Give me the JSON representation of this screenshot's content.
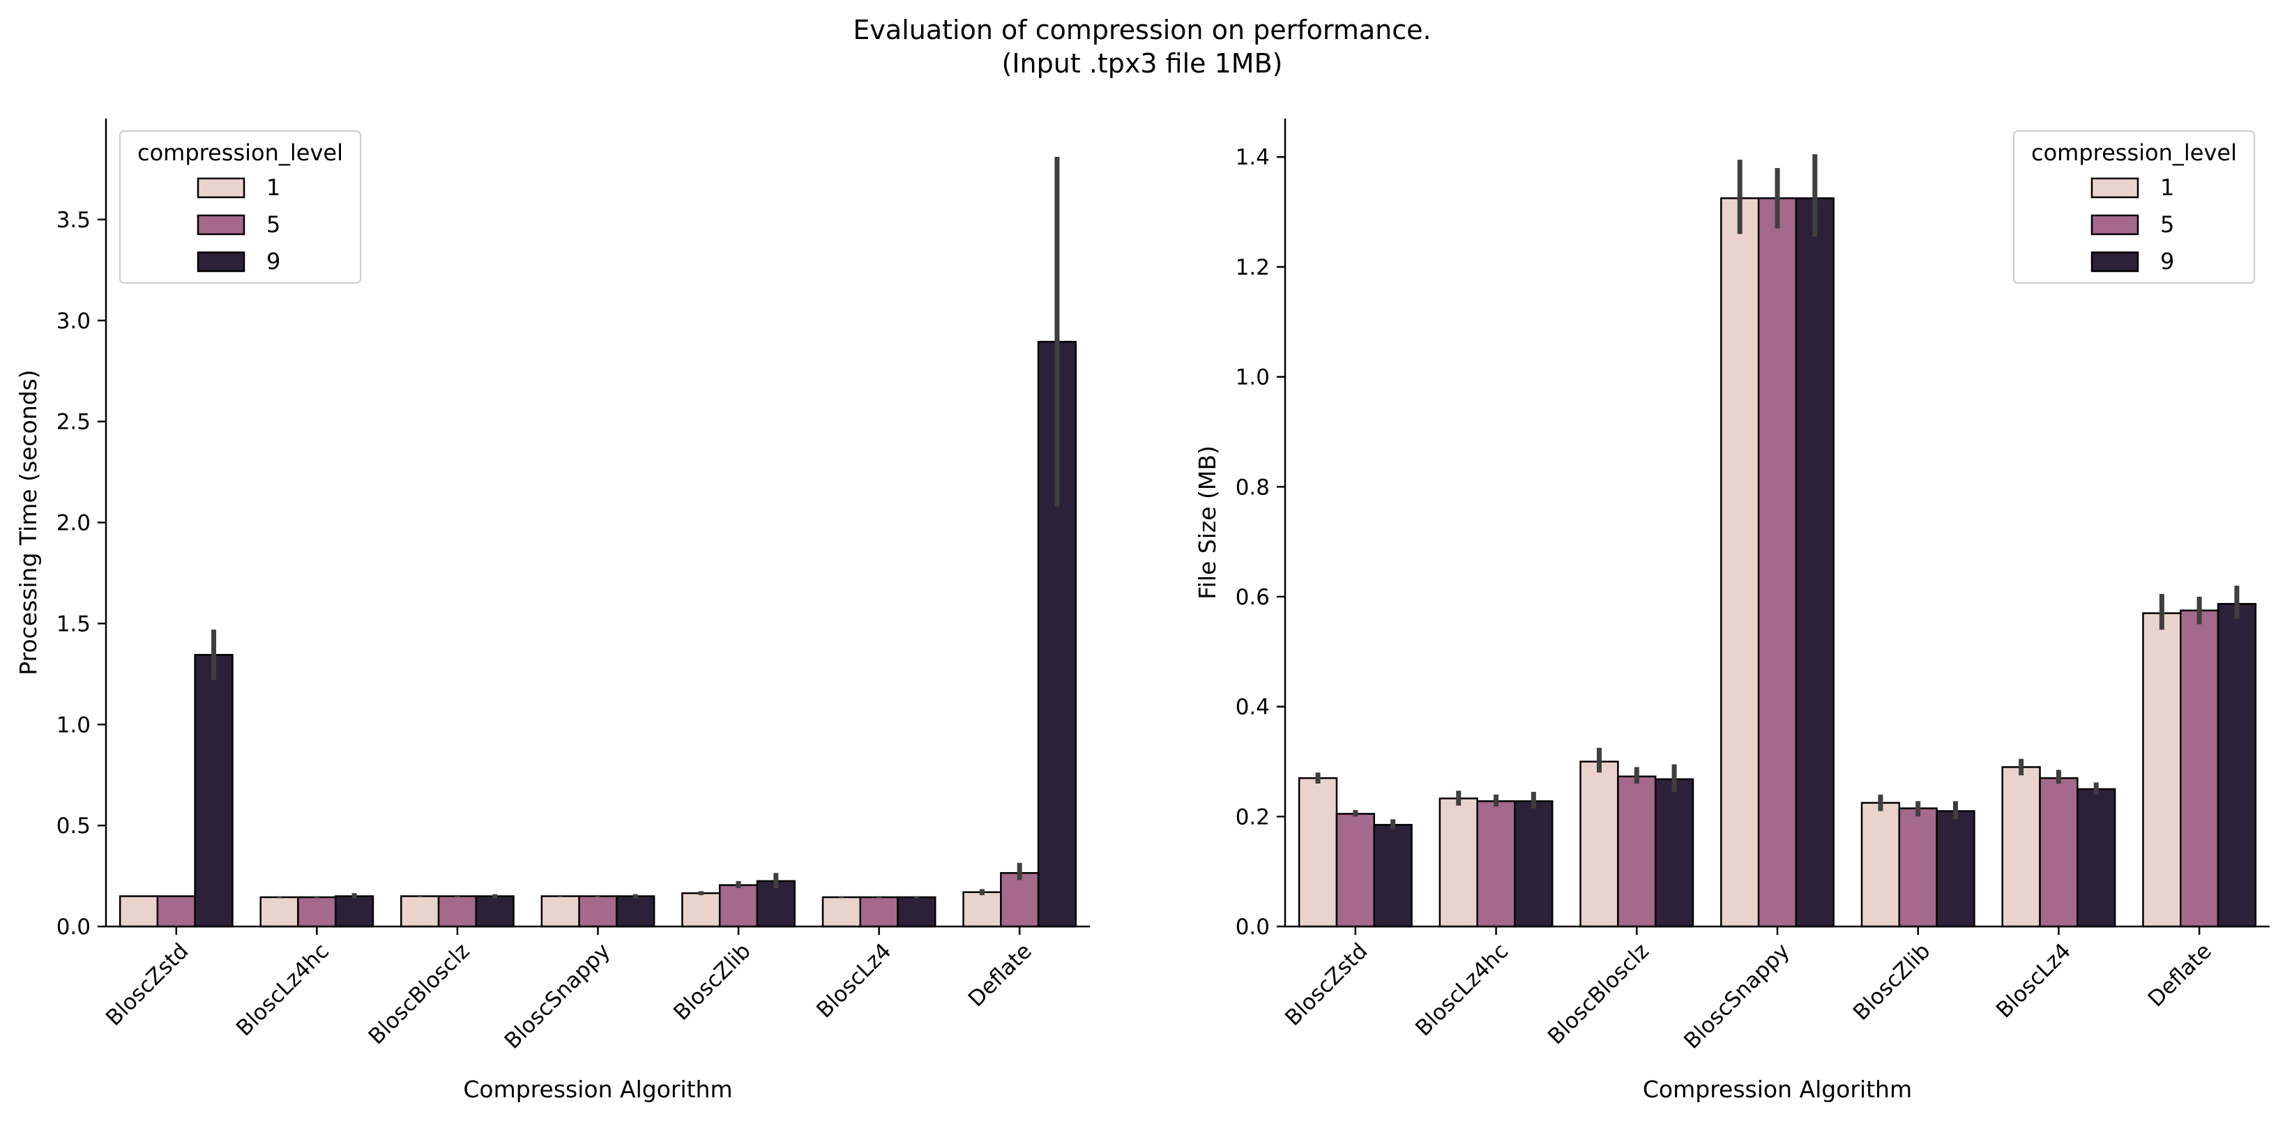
{
  "figure": {
    "title_line1": "Evaluation of compression on performance.",
    "title_line2": "(Input .tpx3 file 1MB)"
  },
  "colors": {
    "level_1": "#ebd3cd",
    "level_5": "#a5698c",
    "level_9": "#2d2139",
    "edge": "#000000",
    "errorbar": "#3f3f3f"
  },
  "chart_data": [
    {
      "type": "bar",
      "categories": [
        "BloscZstd",
        "BloscLz4hc",
        "BloscBlosclz",
        "BloscSnappy",
        "BloscZlib",
        "BloscLz4",
        "Deflate"
      ],
      "xlabel": "Compression Algorithm",
      "ylabel": "Processing Time (seconds)",
      "ylim": [
        0,
        4.0
      ],
      "yticks": [
        0.0,
        0.5,
        1.0,
        1.5,
        2.0,
        2.5,
        3.0,
        3.5
      ],
      "ytick_labels": [
        "0.0",
        "0.5",
        "1.0",
        "1.5",
        "2.0",
        "2.5",
        "3.0",
        "3.5"
      ],
      "legend": {
        "title": "compression_level",
        "placement": "top-left"
      },
      "series": [
        {
          "name": "1",
          "values": [
            0.15,
            0.145,
            0.15,
            0.15,
            0.165,
            0.145,
            0.17
          ],
          "err_low": [
            0.15,
            0.14,
            0.145,
            0.145,
            0.155,
            0.14,
            0.155
          ],
          "err_high": [
            0.15,
            0.15,
            0.155,
            0.155,
            0.175,
            0.15,
            0.185
          ]
        },
        {
          "name": "5",
          "values": [
            0.15,
            0.145,
            0.15,
            0.15,
            0.205,
            0.145,
            0.265
          ],
          "err_low": [
            0.15,
            0.14,
            0.145,
            0.145,
            0.19,
            0.14,
            0.23
          ],
          "err_high": [
            0.15,
            0.15,
            0.155,
            0.155,
            0.225,
            0.15,
            0.315
          ]
        },
        {
          "name": "9",
          "values": [
            1.345,
            0.15,
            0.15,
            0.15,
            0.225,
            0.145,
            2.895
          ],
          "err_low": [
            1.22,
            0.14,
            0.14,
            0.14,
            0.19,
            0.14,
            2.08
          ],
          "err_high": [
            1.47,
            0.165,
            0.16,
            0.16,
            0.265,
            0.15,
            3.81
          ]
        }
      ]
    },
    {
      "type": "bar",
      "categories": [
        "BloscZstd",
        "BloscLz4hc",
        "BloscBlosclz",
        "BloscSnappy",
        "BloscZlib",
        "BloscLz4",
        "Deflate"
      ],
      "xlabel": "Compression Algorithm",
      "ylabel": "File Size (MB)",
      "ylim": [
        0,
        1.47
      ],
      "yticks": [
        0.0,
        0.2,
        0.4,
        0.6,
        0.8,
        1.0,
        1.2,
        1.4
      ],
      "ytick_labels": [
        "0.0",
        "0.2",
        "0.4",
        "0.6",
        "0.8",
        "1.0",
        "1.2",
        "1.4"
      ],
      "legend": {
        "title": "compression_level",
        "placement": "top-right"
      },
      "series": [
        {
          "name": "1",
          "values": [
            0.27,
            0.233,
            0.3,
            1.325,
            0.225,
            0.29,
            0.57
          ],
          "err_low": [
            0.26,
            0.22,
            0.28,
            1.26,
            0.21,
            0.275,
            0.54
          ],
          "err_high": [
            0.28,
            0.247,
            0.325,
            1.395,
            0.24,
            0.305,
            0.605
          ]
        },
        {
          "name": "5",
          "values": [
            0.205,
            0.228,
            0.273,
            1.325,
            0.215,
            0.27,
            0.575
          ],
          "err_low": [
            0.2,
            0.218,
            0.26,
            1.27,
            0.2,
            0.26,
            0.55
          ],
          "err_high": [
            0.212,
            0.24,
            0.29,
            1.38,
            0.228,
            0.285,
            0.6
          ]
        },
        {
          "name": "9",
          "values": [
            0.185,
            0.228,
            0.268,
            1.325,
            0.21,
            0.25,
            0.587
          ],
          "err_low": [
            0.177,
            0.215,
            0.245,
            1.255,
            0.195,
            0.24,
            0.56
          ],
          "err_high": [
            0.195,
            0.245,
            0.295,
            1.405,
            0.228,
            0.262,
            0.62
          ]
        }
      ]
    }
  ]
}
